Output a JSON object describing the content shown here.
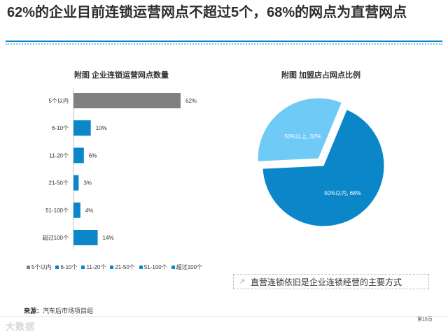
{
  "page": {
    "title": "62%的企业目前连锁运营网点不超过5个，68%的网点为直营网点",
    "callout": "直营连锁依旧是企业连锁经营的主要方式",
    "callout_icon": "arrow-icon",
    "source_label": "来源：",
    "source_text": "汽车后市场项目组",
    "page_number": "第16页",
    "watermark": "大数据",
    "accent_color": "#0b86c8"
  },
  "chart_data": [
    {
      "type": "bar",
      "orientation": "horizontal",
      "title": "附图  企业连锁运营网点数量",
      "categories": [
        "5个以内",
        "6-10个",
        "11-20个",
        "21-50个",
        "51-100个",
        "超过100个"
      ],
      "values": [
        62,
        10,
        6,
        3,
        4,
        14
      ],
      "value_labels": [
        "62%",
        "10%",
        "6%",
        "3%",
        "4%",
        "14%"
      ],
      "unit": "%",
      "colors": [
        "#808080",
        "#0b86c8",
        "#0b86c8",
        "#0b86c8",
        "#0b86c8",
        "#0b86c8"
      ],
      "legend": [
        "5个以内",
        "6-10个",
        "11-20个",
        "21-50个",
        "51-100个",
        "超过100个"
      ],
      "legend_position": "bottom",
      "grid": false
    },
    {
      "type": "pie",
      "title": "附图  加盟店占网点比例",
      "labels": [
        "50%以内",
        "50%以上"
      ],
      "values": [
        68,
        32
      ],
      "slice_labels": [
        "50%以内, 68%",
        "50%以上, 32%"
      ],
      "colors": [
        "#0b86c8",
        "#6fcaf5"
      ],
      "exploded": "50%以上"
    }
  ]
}
